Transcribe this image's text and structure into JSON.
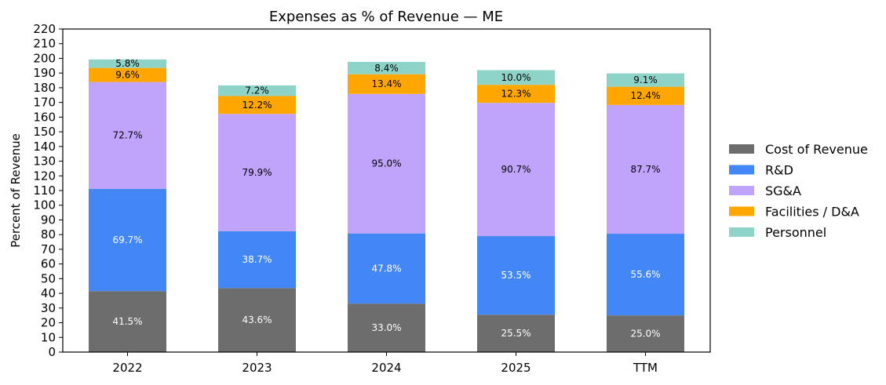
{
  "chart_data": {
    "type": "bar",
    "stacked": true,
    "title": "Expenses as % of Revenue — ME",
    "xlabel": "",
    "ylabel": "Percent of Revenue",
    "ylim": [
      0,
      220
    ],
    "ytick_step": 10,
    "grid": false,
    "legend_position": "right",
    "categories": [
      "2022",
      "2023",
      "2024",
      "2025",
      "TTM"
    ],
    "series": [
      {
        "name": "Cost of Revenue",
        "color": "#6d6d6d",
        "label_color": "#ffffff",
        "values": [
          41.5,
          43.6,
          33.0,
          25.5,
          25.0
        ]
      },
      {
        "name": "R&D",
        "color": "#4287f5",
        "label_color": "#ffffff",
        "values": [
          69.7,
          38.7,
          47.8,
          53.5,
          55.6
        ]
      },
      {
        "name": "SG&A",
        "color": "#c0a4fc",
        "label_color": "#000000",
        "values": [
          72.7,
          79.9,
          95.0,
          90.7,
          87.7
        ]
      },
      {
        "name": "Facilities / D&A",
        "color": "#ffa600",
        "label_color": "#000000",
        "values": [
          9.6,
          12.2,
          13.4,
          12.3,
          12.4
        ]
      },
      {
        "name": "Personnel",
        "color": "#8dd3c7",
        "label_color": "#000000",
        "values": [
          5.8,
          7.2,
          8.4,
          10.0,
          9.1
        ]
      }
    ],
    "data_label_format": "{v}%"
  }
}
